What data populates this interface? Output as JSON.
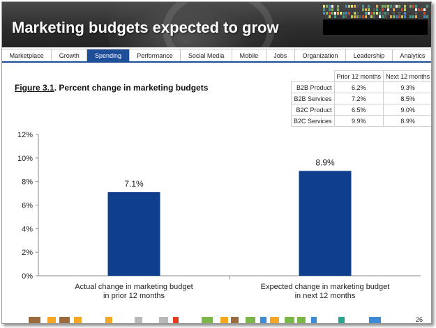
{
  "header": {
    "title": "Marketing budgets expected to grow"
  },
  "tabs": [
    {
      "label": "Marketplace",
      "active": false
    },
    {
      "label": "Growth",
      "active": false
    },
    {
      "label": "Spending",
      "active": true
    },
    {
      "label": "Performance",
      "active": false
    },
    {
      "label": "Social Media",
      "active": false
    },
    {
      "label": "Mobile",
      "active": false
    },
    {
      "label": "Jobs",
      "active": false
    },
    {
      "label": "Organization",
      "active": false
    },
    {
      "label": "Leadership",
      "active": false
    },
    {
      "label": "Analytics",
      "active": false
    }
  ],
  "figure": {
    "number": "Figure 3.1",
    "caption": ".  Percent change in marketing budgets"
  },
  "table": {
    "headers": [
      "Prior 12 months",
      "Next 12 months"
    ],
    "rows": [
      {
        "label": "B2B Product",
        "prior": "6.2%",
        "next": "9.3%"
      },
      {
        "label": "B2B Services",
        "prior": "7.2%",
        "next": "8.5%"
      },
      {
        "label": "B2C Product",
        "prior": "6.5%",
        "next": "9.0%"
      },
      {
        "label": "B2C Services",
        "prior": "9.9%",
        "next": "8.9%"
      }
    ]
  },
  "chart_data": {
    "type": "bar",
    "title": "Percent change in marketing budgets",
    "categories": [
      [
        "Actual change in marketing budget",
        "in prior 12 months"
      ],
      [
        "Expected change in marketing budget",
        "in next 12 months"
      ]
    ],
    "values": [
      7.1,
      8.9
    ],
    "data_labels": [
      "7.1%",
      "8.9%"
    ],
    "ylim": [
      0,
      12
    ],
    "yticks": [
      0,
      2,
      4,
      6,
      8,
      10,
      12
    ],
    "ytick_labels": [
      "0%",
      "2%",
      "4%",
      "6%",
      "8%",
      "10%",
      "12%"
    ],
    "bar_color": "#0f3f8c",
    "grid": false
  },
  "page_number": "26",
  "colors": {
    "accent": "#1f4e99",
    "bar": "#0f3f8c"
  }
}
